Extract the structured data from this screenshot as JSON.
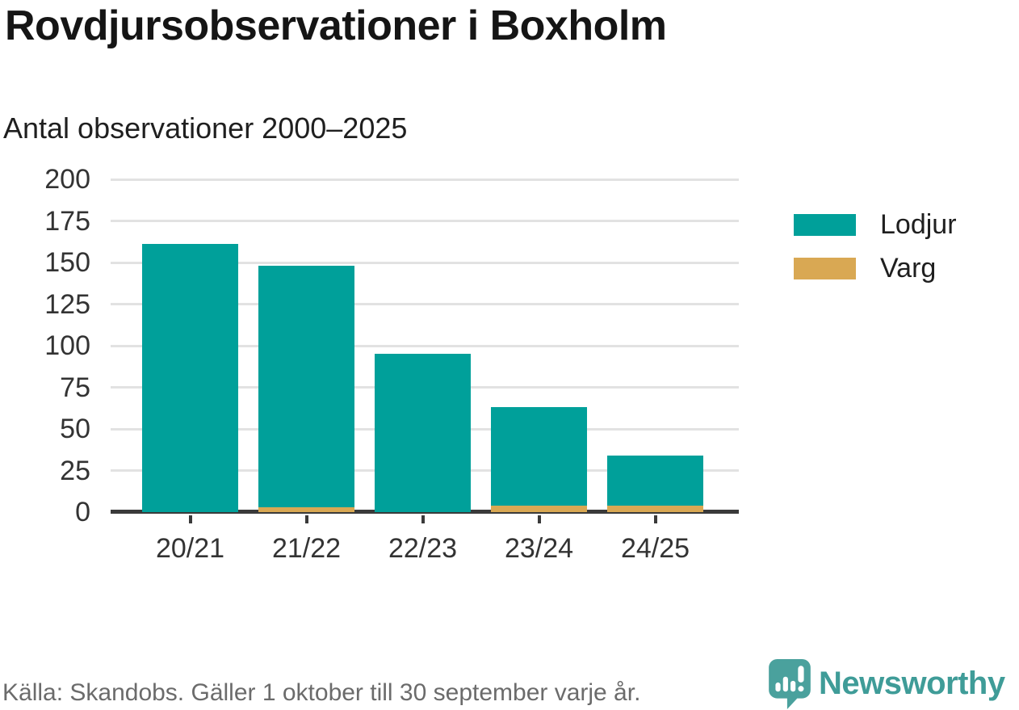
{
  "header": {
    "title": "Rovdjursobservationer i Boxholm",
    "subtitle": "Antal observationer 2000–2025"
  },
  "chart_data": {
    "type": "bar",
    "stacked": true,
    "title": "Rovdjursobservationer i Boxholm",
    "subtitle": "Antal observationer 2000–2025",
    "categories": [
      "20/21",
      "21/22",
      "22/23",
      "23/24",
      "24/25"
    ],
    "series": [
      {
        "name": "Lodjur",
        "color": "#00A09A",
        "values": [
          161,
          145,
          95,
          59,
          30
        ]
      },
      {
        "name": "Varg",
        "color": "#D9A853",
        "values": [
          0,
          3,
          0,
          4,
          4
        ]
      }
    ],
    "stacked_totals": [
      161,
      148,
      95,
      63,
      34
    ],
    "xlabel": "",
    "ylabel": "",
    "ylim": [
      0,
      200
    ],
    "yticks": [
      0,
      25,
      50,
      75,
      100,
      125,
      150,
      175,
      200
    ],
    "grid": true,
    "gridline_color": "#e2e2e2",
    "axis_color": "#3a3a3a",
    "legend_position": "right"
  },
  "footer": {
    "source": "Källa: Skandobs. Gäller 1 oktober till 30 september varje år.",
    "brand": "Newsworthy",
    "brand_color": "#3f9c98",
    "logo_icon": "bar-chart-speech-bubble"
  }
}
